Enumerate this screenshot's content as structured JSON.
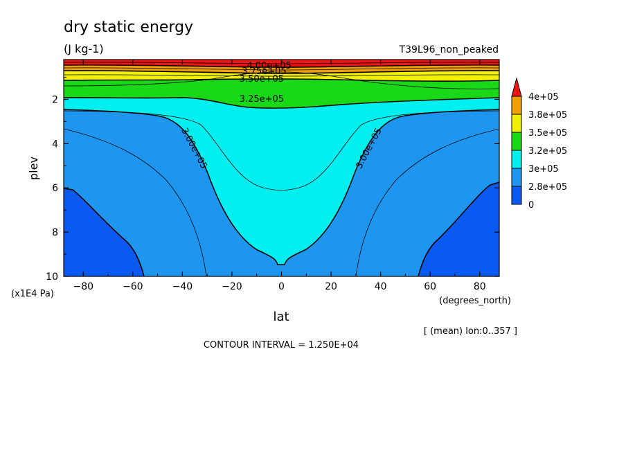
{
  "chart_data": {
    "type": "contour",
    "title": "dry static energy",
    "units": "(J kg-1)",
    "run_label": "T39L96_non_peaked",
    "xlabel": "lat",
    "x_units": "(degrees_north)",
    "ylabel": "plev",
    "y_units": "(x1E4 Pa)",
    "xlim": [
      -87.9,
      87.9
    ],
    "ylim": [
      10,
      0.2
    ],
    "x_ticks": [
      -80,
      -60,
      -40,
      -20,
      0,
      20,
      40,
      60,
      80
    ],
    "x_tick_labels": [
      "−80",
      "−60",
      "−40",
      "−20",
      "0",
      "20",
      "40",
      "60",
      "80"
    ],
    "y_ticks": [
      2,
      4,
      6,
      8,
      10
    ],
    "y_tick_labels": [
      "2",
      "4",
      "6",
      "8",
      "10"
    ],
    "contour_interval_text": "CONTOUR INTERVAL = 1.250E+04",
    "mean_note": "[ (mean) lon:0..357 ]",
    "colorbar": {
      "levels": [
        "0",
        "2.8e+05",
        "3e+05",
        "3.2e+05",
        "3.5e+05",
        "3.8e+05",
        "4e+05"
      ],
      "colors": [
        "#0a5af2",
        "#1e96f0",
        "#00f0f0",
        "#18d818",
        "#f0f000",
        "#f0a000",
        "#f01414"
      ]
    },
    "contour_labels": [
      {
        "text": "4.00e+05",
        "lat": -5,
        "plev": 0.45
      },
      {
        "text": "3.75e+05",
        "lat": -7,
        "plev": 0.7
      },
      {
        "text": "3.50e+05",
        "lat": -8,
        "plev": 1.05
      },
      {
        "text": "3.25e+05",
        "lat": -8,
        "plev": 1.95
      },
      {
        "text": "3.00e+05",
        "lat": -35,
        "plev": 4.2
      },
      {
        "text": "3.00e+05",
        "lat": 35,
        "plev": 4.2
      }
    ],
    "bands": [
      {
        "range": "< 2.8e+05",
        "color": "#0a5af2",
        "region": "low-level polar regions, lat < −55 and lat > 55 below ~6"
      },
      {
        "range": "2.8e+05 – 3e+05",
        "color": "#1e96f0",
        "region": "mid/high latitudes, 2.3–10"
      },
      {
        "range": "3e+05 – 3.2e+05",
        "color": "#00f0f0",
        "region": "tropics and upper levels"
      },
      {
        "range": "3.2e+05 – 3.5e+05",
        "color": "#18d818",
        "region": "upper levels 0.9–2.3"
      },
      {
        "range": "3.5e+05 – 3.8e+05",
        "color": "#f0f000",
        "region": "0.6–1.0"
      },
      {
        "range": "3.8e+05 – 4e+05",
        "color": "#f0a000",
        "region": "0.4–0.6"
      },
      {
        "range": "> 4e+05",
        "color": "#f01414",
        "region": "top 0.2–0.4"
      }
    ]
  }
}
